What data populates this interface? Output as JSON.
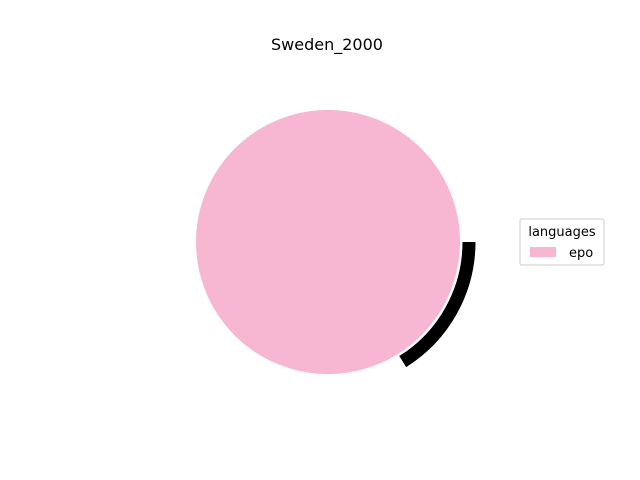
{
  "chart_data": {
    "type": "pie",
    "title": "Sweden_2000",
    "legend": {
      "title": "languages",
      "placement": "right",
      "entries": [
        "epo"
      ]
    },
    "slices": [
      {
        "label": "epo",
        "value": 100,
        "color": "#f7b6d2"
      }
    ],
    "shadow_color": "#000000",
    "edge_color": "#ffffff"
  }
}
